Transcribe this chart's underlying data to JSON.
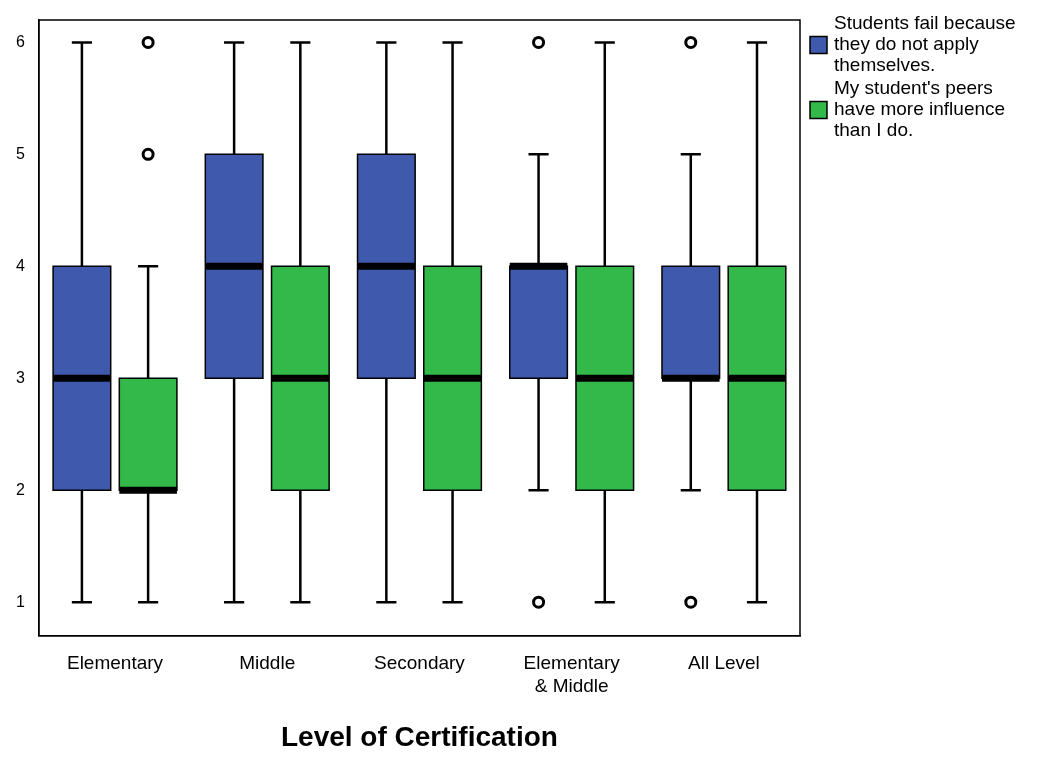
{
  "chart_data": {
    "type": "box",
    "xlabel": "Level of Certification",
    "categories": [
      "Elementary",
      "Middle",
      "Secondary",
      "Elementary & Middle",
      "All Level"
    ],
    "series": [
      {
        "name": "Students fail because they do not apply themselves.",
        "color": "#3f5aad",
        "boxes": [
          {
            "low": 1,
            "q1": 2,
            "median": 3,
            "q3": 4,
            "high": 6
          },
          {
            "low": 1,
            "q1": 3,
            "median": 4,
            "q3": 5,
            "high": 6
          },
          {
            "low": 1,
            "q1": 3,
            "median": 4,
            "q3": 5,
            "high": 6
          },
          {
            "low": 2,
            "q1": 3,
            "median": 4,
            "q3": 4,
            "high": 5,
            "outliers": [
              6,
              1
            ]
          },
          {
            "low": 2,
            "q1": 3,
            "median": 3,
            "q3": 4,
            "high": 5,
            "outliers": [
              6,
              1
            ]
          }
        ]
      },
      {
        "name": "My student's peers have more influence than I do.",
        "color": "#33b94a",
        "boxes": [
          {
            "low": 1,
            "q1": 2,
            "median": 2,
            "q3": 3,
            "high": 4,
            "outliers": [
              6,
              5
            ]
          },
          {
            "low": 1,
            "q1": 2,
            "median": 3,
            "q3": 4,
            "high": 6
          },
          {
            "low": 1,
            "q1": 2,
            "median": 3,
            "q3": 4,
            "high": 6
          },
          {
            "low": 1,
            "q1": 2,
            "median": 3,
            "q3": 4,
            "high": 6
          },
          {
            "low": 1,
            "q1": 2,
            "median": 3,
            "q3": 4,
            "high": 6
          }
        ]
      }
    ],
    "ylim": [
      0.7,
      6.2
    ],
    "yticks": [
      1,
      2,
      3,
      4,
      5,
      6
    ],
    "grid": false,
    "legend": "top right"
  }
}
